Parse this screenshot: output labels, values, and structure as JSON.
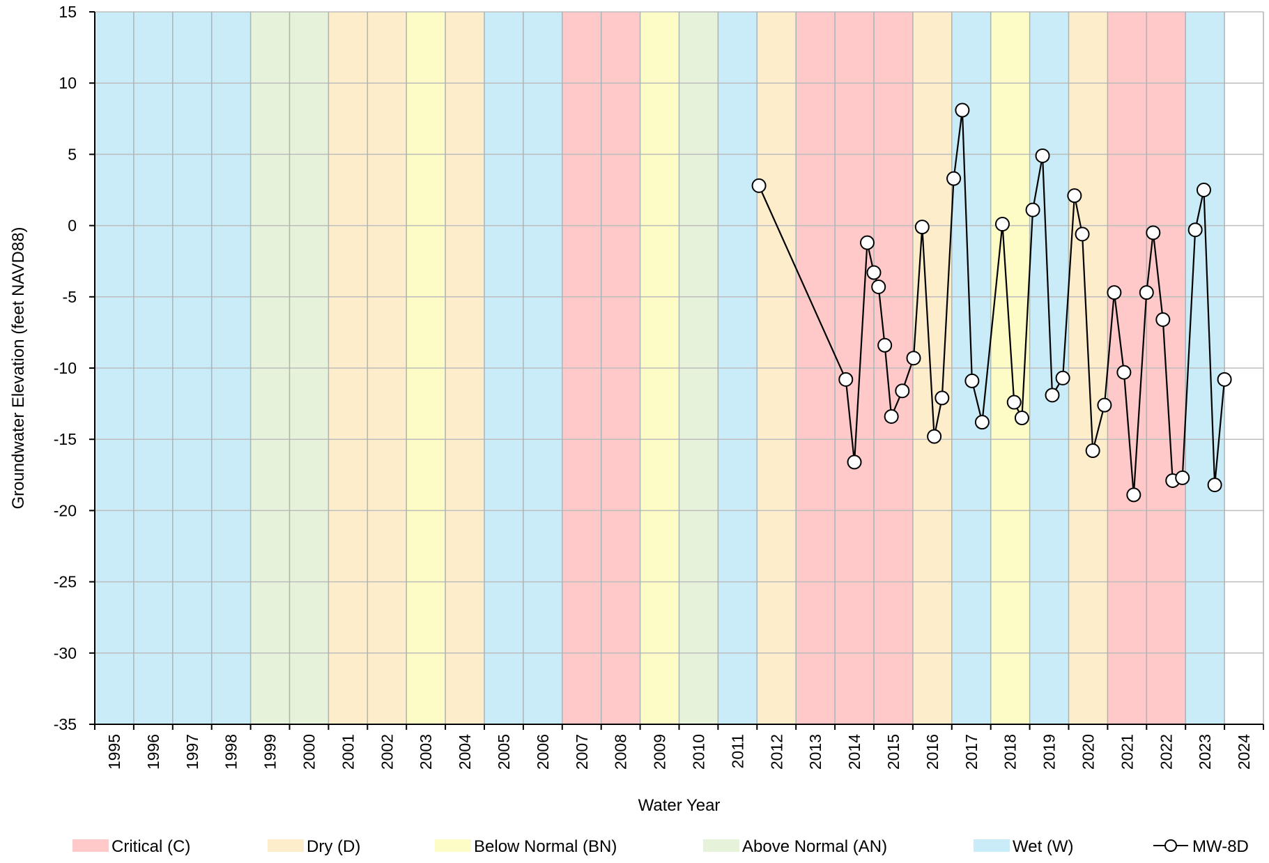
{
  "chart_data": {
    "type": "line",
    "xlabel": "Water Year",
    "ylabel": "Groundwater Elevation (feet NAVD88)",
    "ylim": [
      -35,
      15
    ],
    "y_ticks": [
      15,
      10,
      5,
      0,
      -5,
      -10,
      -15,
      -20,
      -25,
      -30,
      -35
    ],
    "xlim": [
      1995,
      2024
    ],
    "x_ticks": [
      "1995",
      "1996",
      "1997",
      "1998",
      "1999",
      "2000",
      "2001",
      "2002",
      "2003",
      "2004",
      "2005",
      "2006",
      "2007",
      "2008",
      "2009",
      "2010",
      "2011",
      "2012",
      "2013",
      "2014",
      "2015",
      "2016",
      "2017",
      "2018",
      "2019",
      "2020",
      "2021",
      "2022",
      "2023",
      "2024"
    ],
    "grid": true,
    "background_bands": {
      "legend_entries": [
        {
          "code": "C",
          "label": "Critical (C)",
          "color": "#ffc9c9"
        },
        {
          "code": "D",
          "label": "Dry (D)",
          "color": "#fdedcb"
        },
        {
          "code": "BN",
          "label": "Below Normal (BN)",
          "color": "#fdfcc6"
        },
        {
          "code": "AN",
          "label": "Above Normal (AN)",
          "color": "#e6f2d9"
        },
        {
          "code": "W",
          "label": "Wet (W)",
          "color": "#c9ecf8"
        }
      ],
      "years": [
        {
          "year": 1995,
          "type": "W"
        },
        {
          "year": 1996,
          "type": "W"
        },
        {
          "year": 1997,
          "type": "W"
        },
        {
          "year": 1998,
          "type": "W"
        },
        {
          "year": 1999,
          "type": "AN"
        },
        {
          "year": 2000,
          "type": "AN"
        },
        {
          "year": 2001,
          "type": "D"
        },
        {
          "year": 2002,
          "type": "D"
        },
        {
          "year": 2003,
          "type": "BN"
        },
        {
          "year": 2004,
          "type": "D"
        },
        {
          "year": 2005,
          "type": "W"
        },
        {
          "year": 2006,
          "type": "W"
        },
        {
          "year": 2007,
          "type": "C"
        },
        {
          "year": 2008,
          "type": "C"
        },
        {
          "year": 2009,
          "type": "BN"
        },
        {
          "year": 2010,
          "type": "AN"
        },
        {
          "year": 2011,
          "type": "W"
        },
        {
          "year": 2012,
          "type": "D"
        },
        {
          "year": 2013,
          "type": "C"
        },
        {
          "year": 2014,
          "type": "C"
        },
        {
          "year": 2015,
          "type": "C"
        },
        {
          "year": 2016,
          "type": "D"
        },
        {
          "year": 2017,
          "type": "W"
        },
        {
          "year": 2018,
          "type": "BN"
        },
        {
          "year": 2019,
          "type": "W"
        },
        {
          "year": 2020,
          "type": "D"
        },
        {
          "year": 2021,
          "type": "C"
        },
        {
          "year": 2022,
          "type": "C"
        },
        {
          "year": 2023,
          "type": "W"
        }
      ]
    },
    "series": [
      {
        "name": "MW-8D",
        "color": "#000000",
        "marker": "open-circle",
        "points": [
          {
            "x": 2012.05,
            "y": 2.8
          },
          {
            "x": 2014.28,
            "y": -10.8
          },
          {
            "x": 2014.5,
            "y": -16.6
          },
          {
            "x": 2014.83,
            "y": -1.2
          },
          {
            "x": 2015.0,
            "y": -3.3
          },
          {
            "x": 2015.12,
            "y": -4.3
          },
          {
            "x": 2015.28,
            "y": -8.4
          },
          {
            "x": 2015.45,
            "y": -13.4
          },
          {
            "x": 2015.73,
            "y": -11.6
          },
          {
            "x": 2016.02,
            "y": -9.3
          },
          {
            "x": 2016.24,
            "y": -0.1
          },
          {
            "x": 2016.55,
            "y": -14.8
          },
          {
            "x": 2016.75,
            "y": -12.1
          },
          {
            "x": 2017.05,
            "y": 3.3
          },
          {
            "x": 2017.27,
            "y": 8.1
          },
          {
            "x": 2017.52,
            "y": -10.9
          },
          {
            "x": 2017.78,
            "y": -13.8
          },
          {
            "x": 2018.3,
            "y": 0.1
          },
          {
            "x": 2018.6,
            "y": -12.4
          },
          {
            "x": 2018.8,
            "y": -13.5
          },
          {
            "x": 2019.08,
            "y": 1.1
          },
          {
            "x": 2019.33,
            "y": 4.9
          },
          {
            "x": 2019.58,
            "y": -11.9
          },
          {
            "x": 2019.85,
            "y": -10.7
          },
          {
            "x": 2020.15,
            "y": 2.1
          },
          {
            "x": 2020.35,
            "y": -0.6
          },
          {
            "x": 2020.62,
            "y": -15.8
          },
          {
            "x": 2020.92,
            "y": -12.6
          },
          {
            "x": 2021.17,
            "y": -4.7
          },
          {
            "x": 2021.42,
            "y": -10.3
          },
          {
            "x": 2021.67,
            "y": -18.9
          },
          {
            "x": 2022.0,
            "y": -4.7
          },
          {
            "x": 2022.17,
            "y": -0.5
          },
          {
            "x": 2022.42,
            "y": -6.6
          },
          {
            "x": 2022.67,
            "y": -17.9
          },
          {
            "x": 2022.92,
            "y": -17.7
          },
          {
            "x": 2023.25,
            "y": -0.3
          },
          {
            "x": 2023.47,
            "y": 2.5
          },
          {
            "x": 2023.75,
            "y": -18.2
          },
          {
            "x": 2024.0,
            "y": -10.8
          }
        ]
      }
    ]
  }
}
